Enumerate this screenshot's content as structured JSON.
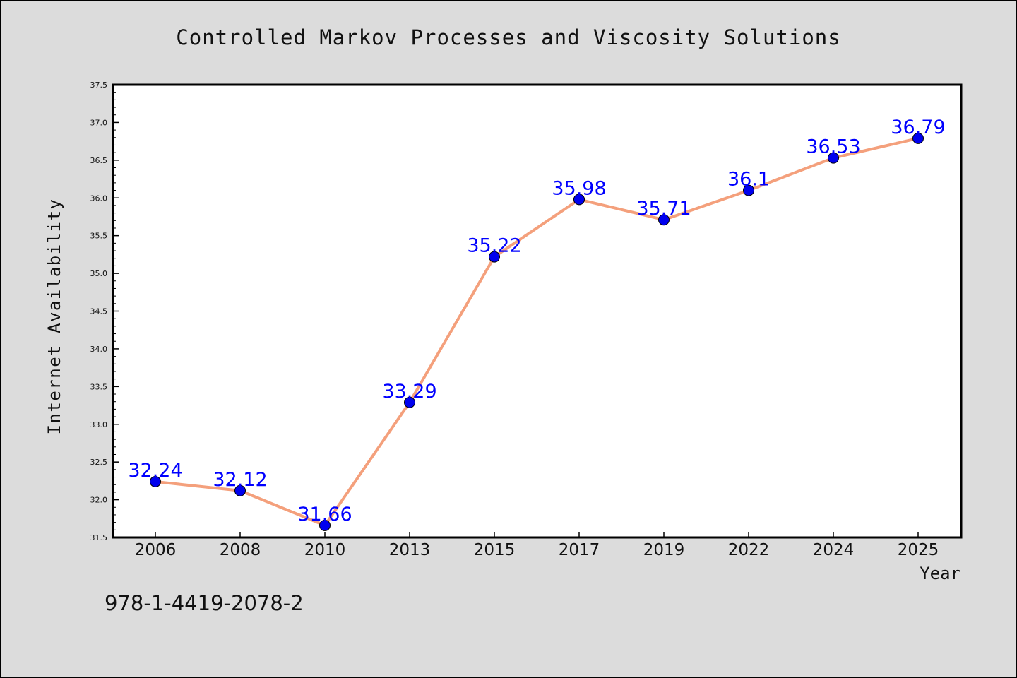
{
  "chart_data": {
    "type": "line",
    "title": "Controlled Markov Processes and Viscosity Solutions",
    "xlabel": "Year",
    "ylabel": "Internet Availability",
    "categories": [
      "2006",
      "2008",
      "2010",
      "2013",
      "2015",
      "2017",
      "2019",
      "2022",
      "2024",
      "2025"
    ],
    "series": [
      {
        "values": [
          32.24,
          32.12,
          31.66,
          33.29,
          35.22,
          35.98,
          35.71,
          36.1,
          36.53,
          36.79
        ],
        "data_labels": [
          "32.24",
          "32.12",
          "31.66",
          "33.29",
          "35.22",
          "35.98",
          "35.71",
          "36.1",
          "36.53",
          "36.79"
        ]
      }
    ],
    "ylim": [
      31.5,
      37.5
    ],
    "yticks": [
      "31.5",
      "32.0",
      "32.5",
      "33.0",
      "33.5",
      "34.0",
      "34.5",
      "35.0",
      "35.5",
      "36.0",
      "36.5",
      "37.0",
      "37.5"
    ],
    "grid": false,
    "line_color": "#f4a07c",
    "marker_color": "#0000ee",
    "label_color": "#0000ff",
    "background_color": "#dcdcdc",
    "plot_background": "#ffffff"
  },
  "footer": {
    "isbn": "978-1-4419-2078-2"
  }
}
